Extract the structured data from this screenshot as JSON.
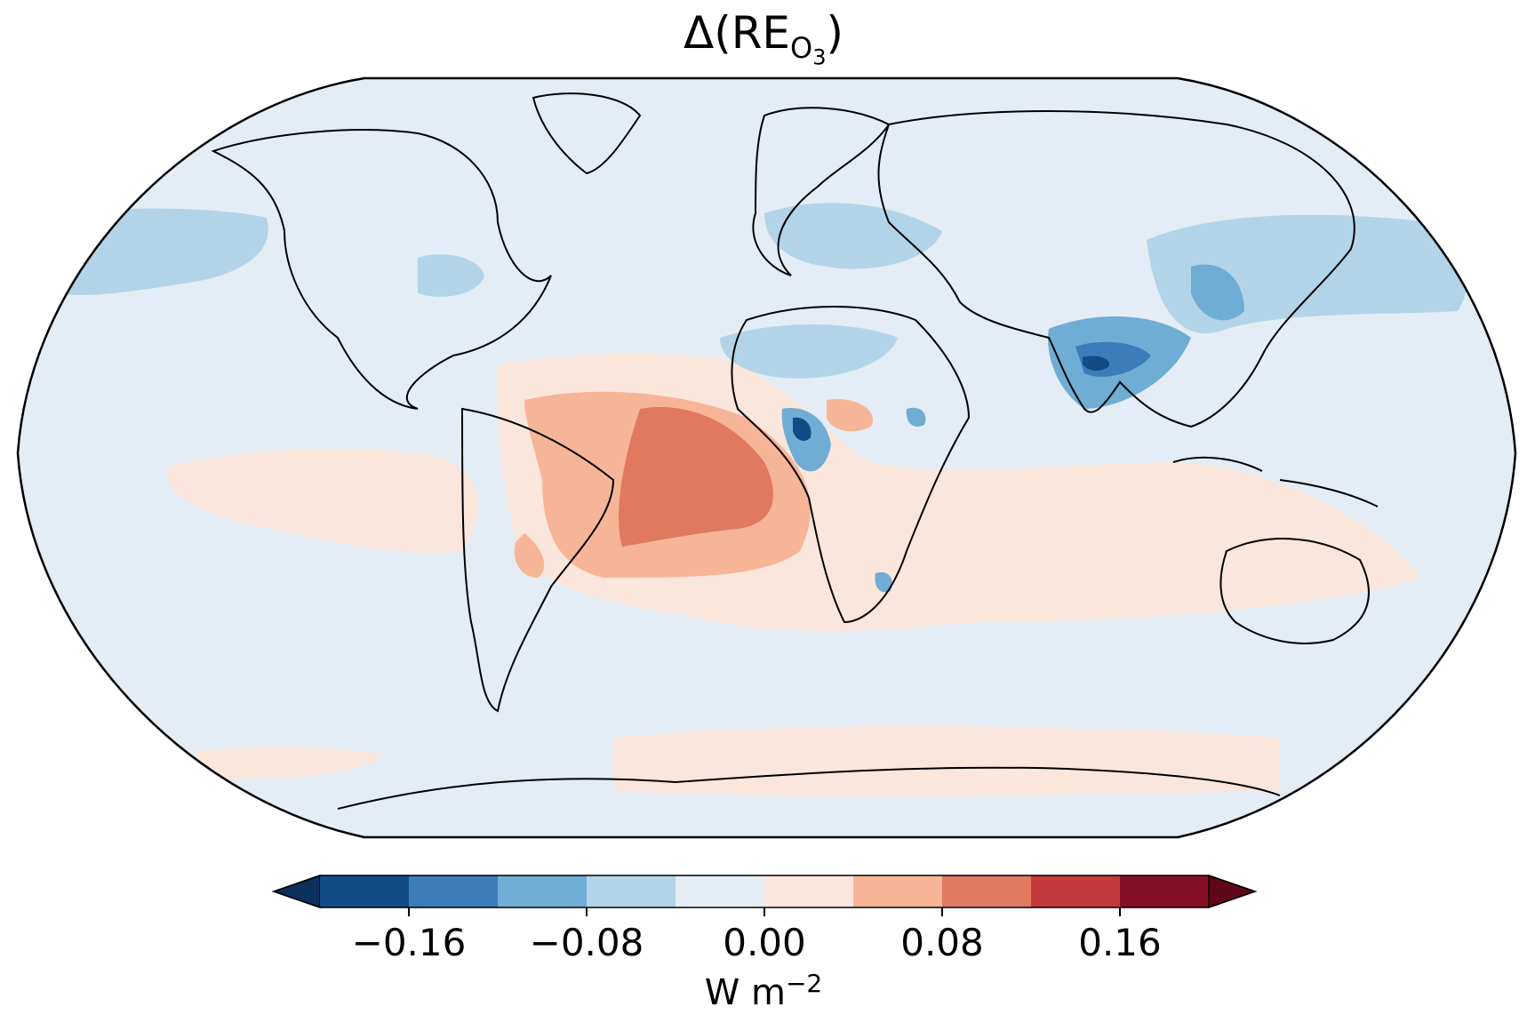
{
  "figure": {
    "title_main": "Δ(RE",
    "title_sub": "O",
    "title_sub2": "3",
    "title_close": ")",
    "projection": "Robinson",
    "background_color": "#e4edf5"
  },
  "colorbar": {
    "unit_prefix": "W m",
    "unit_exp": "−2",
    "extend": "both",
    "levels": [
      -0.2,
      -0.16,
      -0.12,
      -0.08,
      -0.04,
      0.0,
      0.04,
      0.08,
      0.12,
      0.16,
      0.2
    ],
    "colors": [
      "#134b87",
      "#3b7dba",
      "#6fadd4",
      "#b3d4e8",
      "#e4edf5",
      "#fbe6dc",
      "#f7b597",
      "#e0795f",
      "#c43a3c",
      "#850f25"
    ],
    "under_color": "#0a305e",
    "over_color": "#5f0718",
    "ticks": [
      {
        "value": -0.16,
        "label": "−0.16"
      },
      {
        "value": -0.08,
        "label": "−0.08"
      },
      {
        "value": 0.0,
        "label": "0.00"
      },
      {
        "value": 0.08,
        "label": "0.08"
      },
      {
        "value": 0.16,
        "label": "0.16"
      }
    ]
  },
  "regions": [
    {
      "name": "equatorial-pacific",
      "value": 0.02
    },
    {
      "name": "south-atlantic",
      "value": 0.06
    },
    {
      "name": "central-south-america",
      "value": 0.1
    },
    {
      "name": "southern-indian-ocean",
      "value": 0.02
    },
    {
      "name": "southern-ocean-band",
      "value": 0.02
    },
    {
      "name": "north-pacific",
      "value": -0.06
    },
    {
      "name": "europe",
      "value": -0.06
    },
    {
      "name": "east-asia",
      "value": -0.06
    },
    {
      "name": "india",
      "value": -0.1
    },
    {
      "name": "west-africa",
      "value": -0.14
    },
    {
      "name": "eastern-north-america",
      "value": -0.06
    }
  ]
}
